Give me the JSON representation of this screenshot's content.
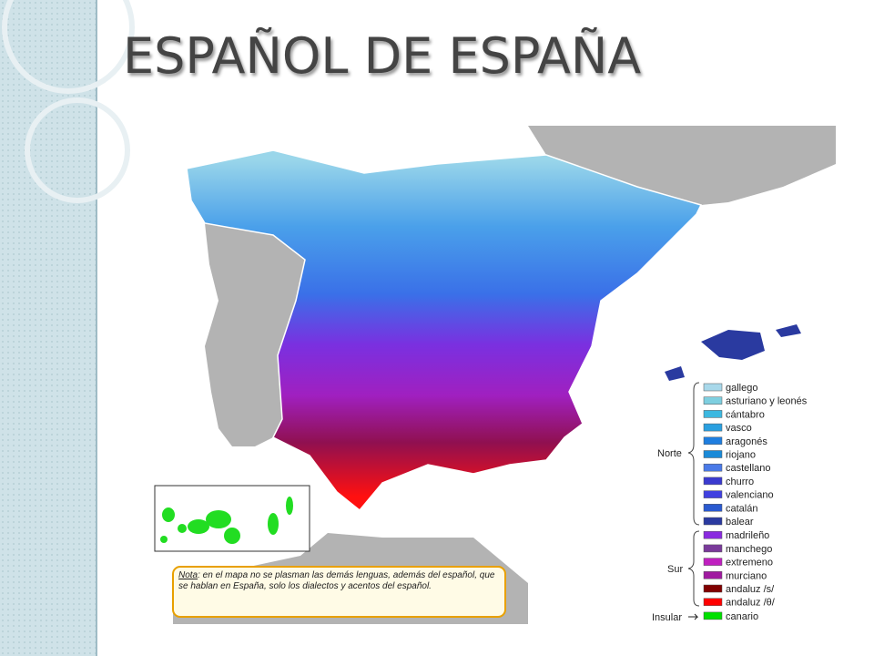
{
  "title": "ESPAÑOL DE ESPAÑA",
  "legend": {
    "groups": [
      {
        "label": "Norte",
        "items": [
          {
            "label": "gallego",
            "color": "#a8d8ea"
          },
          {
            "label": "asturiano y leonés",
            "color": "#7ecfe0"
          },
          {
            "label": "cántabro",
            "color": "#3cb8e0"
          },
          {
            "label": "vasco",
            "color": "#2aa0e0"
          },
          {
            "label": "aragonés",
            "color": "#1e7ee0"
          },
          {
            "label": "riojano",
            "color": "#1a8ad8"
          },
          {
            "label": "castellano",
            "color": "#4a7ae8"
          },
          {
            "label": "churro",
            "color": "#3a3ad0"
          },
          {
            "label": "valenciano",
            "color": "#4040e0"
          },
          {
            "label": "catalán",
            "color": "#2a5ad0"
          },
          {
            "label": "balear",
            "color": "#2a3aa0"
          }
        ]
      },
      {
        "label": "Sur",
        "items": [
          {
            "label": "madrileño",
            "color": "#8a2ae0"
          },
          {
            "label": "manchego",
            "color": "#7a3a9a"
          },
          {
            "label": "extremeno",
            "color": "#c020c0"
          },
          {
            "label": "murciano",
            "color": "#a01aa0"
          },
          {
            "label": "andaluz /s/",
            "color": "#800000"
          },
          {
            "label": "andaluz /θ/",
            "color": "#ff0000"
          }
        ]
      },
      {
        "label": "Insular",
        "items": [
          {
            "label": "canario",
            "color": "#00e000"
          }
        ]
      }
    ]
  },
  "note": {
    "label": "Nota",
    "text": ": en el mapa no se plasman las demás lenguas, además del español, que se hablan en España, solo los dialectos y acentos del español."
  }
}
